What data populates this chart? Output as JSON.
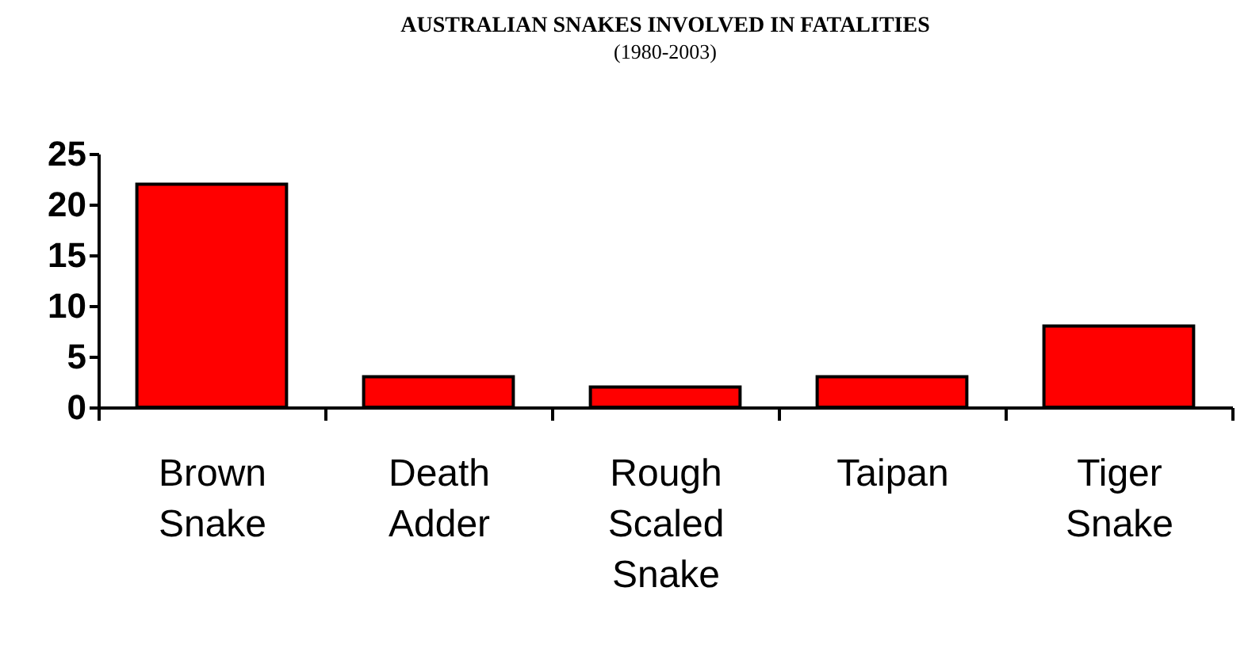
{
  "chart_data": {
    "type": "bar",
    "title": "AUSTRALIAN SNAKES INVOLVED IN FATALITIES",
    "subtitle": "(1980-2003)",
    "categories": [
      "Brown Snake",
      "Death Adder",
      "Rough Scaled Snake",
      "Taipan",
      "Tiger Snake"
    ],
    "values": [
      22,
      3,
      2,
      3,
      8
    ],
    "color": "#ff0000",
    "ylim": [
      0,
      25
    ],
    "yticks": [
      0,
      5,
      10,
      15,
      20,
      25
    ],
    "grid": false
  }
}
